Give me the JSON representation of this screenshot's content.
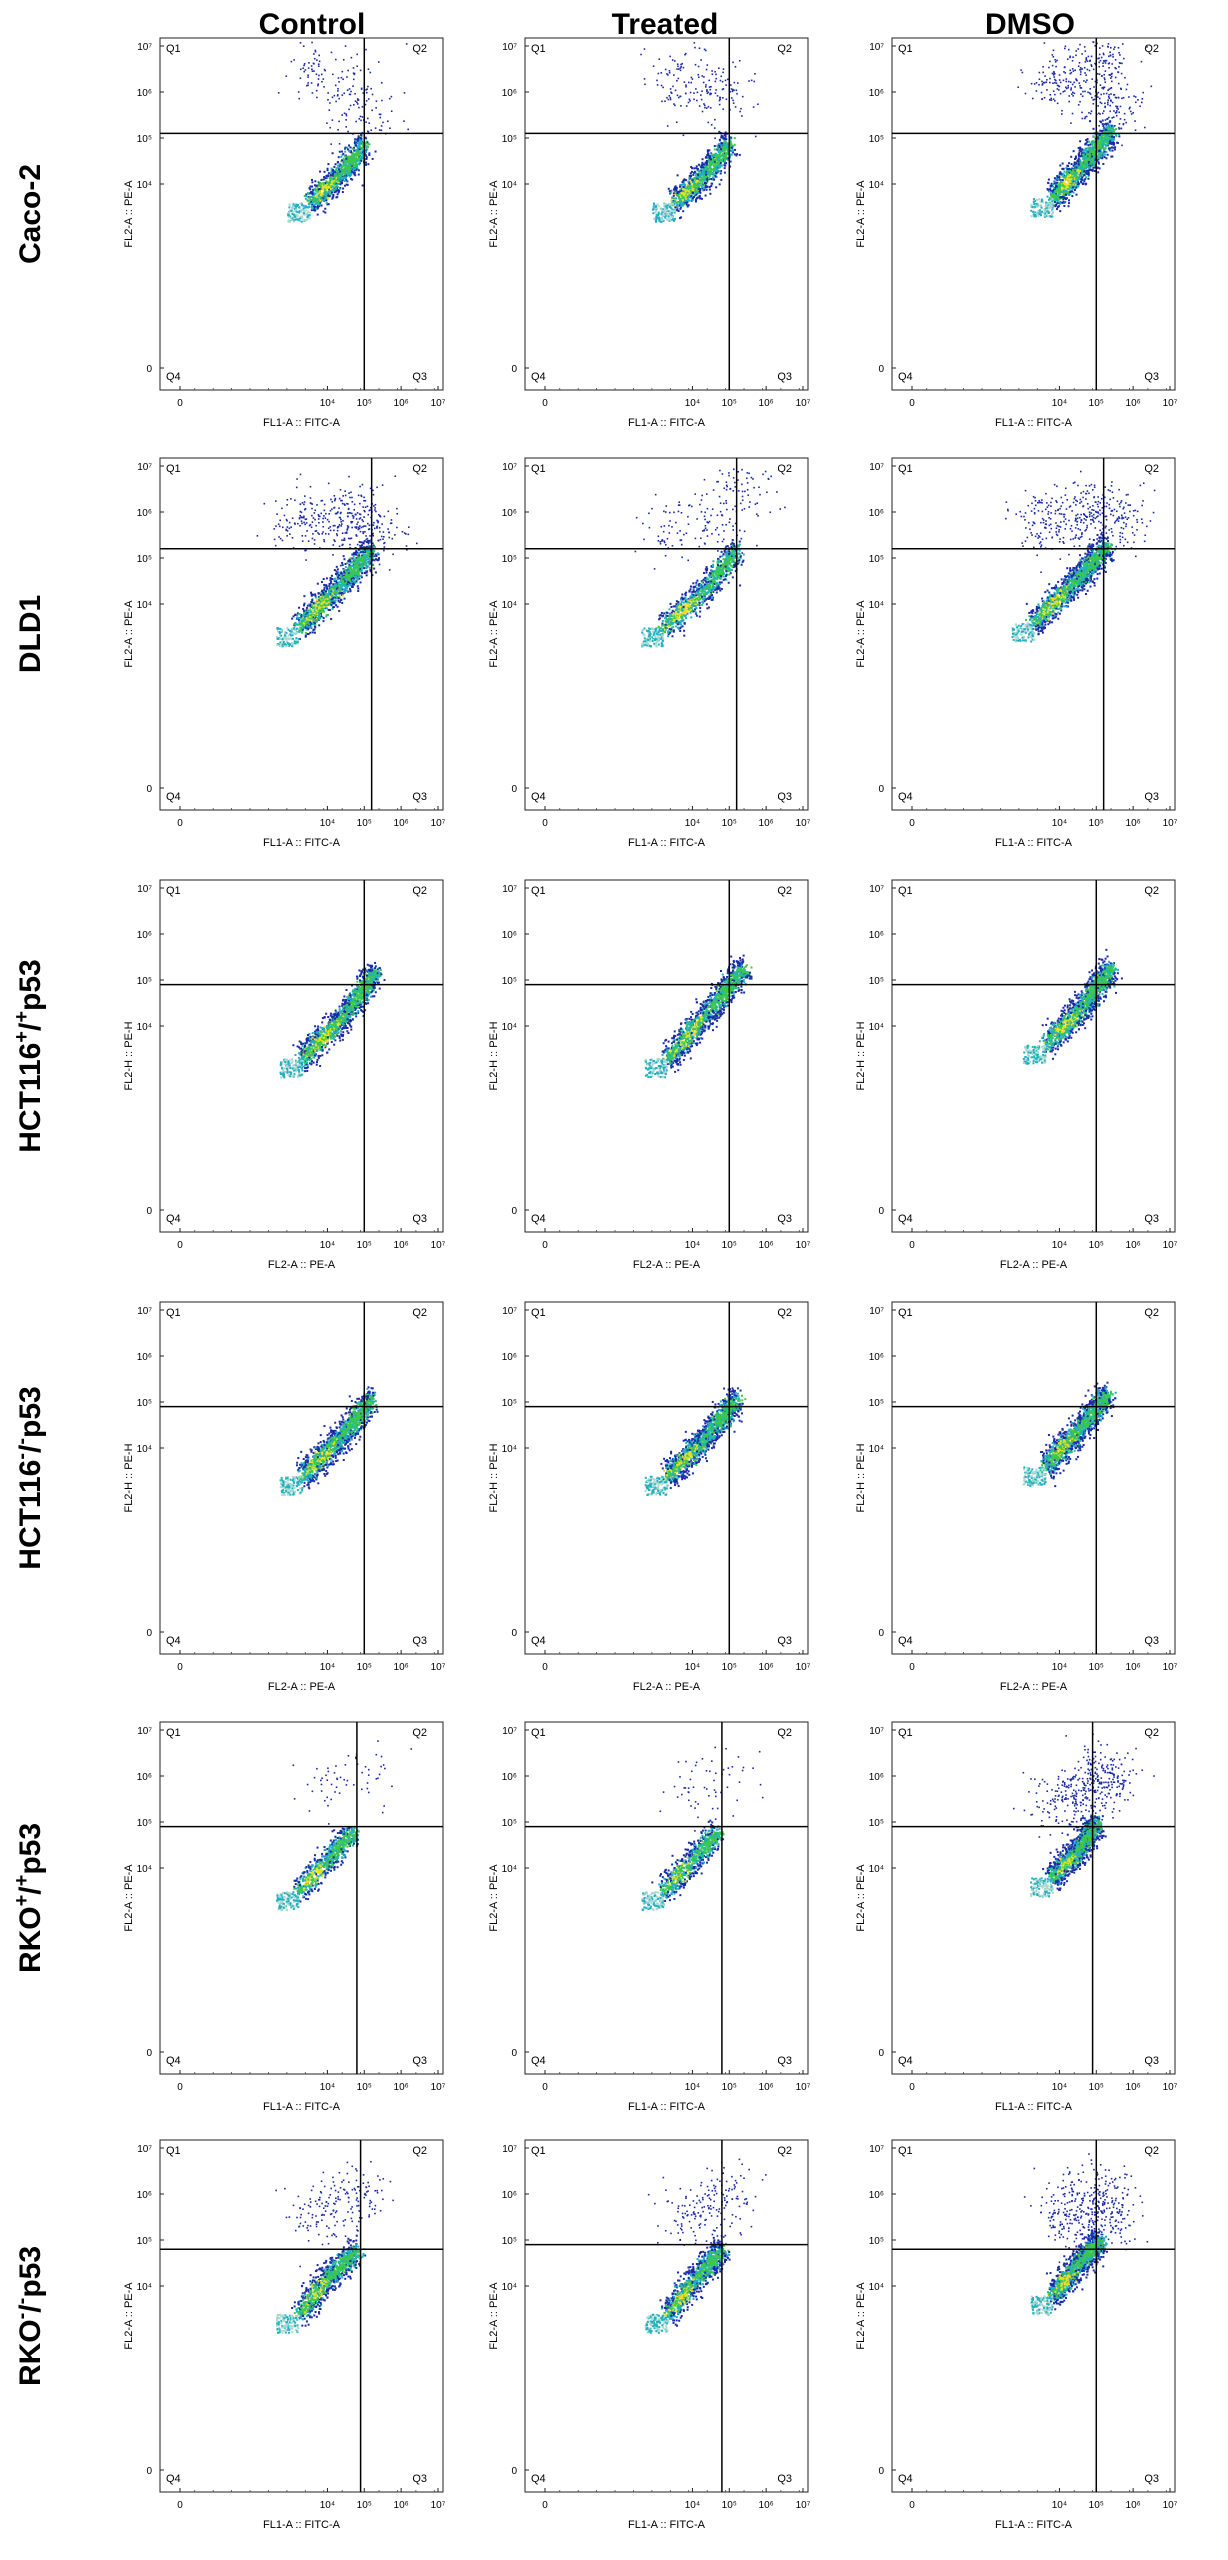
{
  "columns": [
    "Control",
    "Treated",
    "DMSO"
  ],
  "rows": [
    {
      "pre": "Caco-2",
      "sup": "",
      "mid": "",
      "sup2": "",
      "post": ""
    },
    {
      "pre": "DLD1",
      "sup": "",
      "mid": "",
      "sup2": "",
      "post": ""
    },
    {
      "pre": "HCT116",
      "sup": "+",
      "mid": "/",
      "sup2": "+",
      "post": "p53"
    },
    {
      "pre": "HCT116",
      "sup": "-",
      "mid": "/",
      "sup2": "-",
      "post": "p53"
    },
    {
      "pre": "RKO",
      "sup": "+",
      "mid": "/",
      "sup2": "+",
      "post": "p53"
    },
    {
      "pre": "RKO",
      "sup": "-",
      "mid": "/",
      "sup2": "-",
      "post": "p53"
    }
  ],
  "quadrant_labels": [
    "Q1",
    "Q2",
    "Q3",
    "Q4"
  ],
  "tick_labels": {
    "x": [
      "0",
      "10⁴",
      "10⁵",
      "10⁶",
      "10⁷"
    ],
    "y": [
      "0",
      "10⁴",
      "10⁵",
      "10⁶",
      "10⁷"
    ]
  },
  "colors": {
    "outer_dots": "#1a2aa8",
    "mid": "#20b0c0",
    "core": "#3cc84a",
    "hot": "#e8e020",
    "lines": "#000000"
  },
  "chart_data": [
    {
      "type": "scatter",
      "row": "Caco-2",
      "column": "Control",
      "xlabel": "FL1-A :: FITC-A",
      "ylabel": "FL2-A :: PE-A",
      "xlim": [
        0,
        7
      ],
      "ylim": [
        0,
        7
      ],
      "xgate": 5.0,
      "ygate": 5.1,
      "diag": [
        [
          3.5,
          3.6
        ],
        [
          4.3,
          4.2
        ],
        [
          5.0,
          4.9
        ]
      ],
      "spread": [
        [
          3.5,
          6.5
        ],
        [
          4.5,
          6.3
        ],
        [
          5.0,
          5.5
        ]
      ],
      "density": "medium"
    },
    {
      "type": "scatter",
      "row": "Caco-2",
      "column": "Treated",
      "xlabel": "FL1-A :: FITC-A",
      "ylabel": "FL2-A :: PE-A",
      "xlim": [
        0,
        7
      ],
      "ylim": [
        0,
        7
      ],
      "xgate": 5.0,
      "ygate": 5.1,
      "diag": [
        [
          3.5,
          3.6
        ],
        [
          4.3,
          4.2
        ],
        [
          5.0,
          4.9
        ]
      ],
      "spread": [
        [
          3.8,
          6.2
        ],
        [
          4.8,
          6.0
        ]
      ],
      "density": "medium"
    },
    {
      "type": "scatter",
      "row": "Caco-2",
      "column": "DMSO",
      "xlabel": "FL1-A :: FITC-A",
      "ylabel": "FL2-A :: PE-A",
      "xlim": [
        0,
        7
      ],
      "ylim": [
        0,
        7
      ],
      "xgate": 5.0,
      "ygate": 5.1,
      "diag": [
        [
          3.8,
          3.7
        ],
        [
          4.6,
          4.4
        ],
        [
          5.4,
          5.2
        ]
      ],
      "spread": [
        [
          4.0,
          6.3
        ],
        [
          5.0,
          6.7
        ],
        [
          5.4,
          5.7
        ]
      ],
      "density": "high"
    },
    {
      "type": "scatter",
      "row": "DLD1",
      "column": "Control",
      "xlabel": "FL1-A :: FITC-A",
      "ylabel": "FL2-A :: PE-A",
      "xlim": [
        0,
        7
      ],
      "ylim": [
        0,
        7
      ],
      "xgate": 5.2,
      "ygate": 5.2,
      "diag": [
        [
          3.2,
          3.5
        ],
        [
          4.3,
          4.4
        ],
        [
          5.2,
          5.2
        ]
      ],
      "spread": [
        [
          3.3,
          5.8
        ],
        [
          4.5,
          5.9
        ],
        [
          5.2,
          5.6
        ]
      ],
      "density": "high"
    },
    {
      "type": "scatter",
      "row": "DLD1",
      "column": "Treated",
      "xlabel": "FL1-A :: FITC-A",
      "ylabel": "FL2-A :: PE-A",
      "xlim": [
        0,
        7
      ],
      "ylim": [
        0,
        7
      ],
      "xgate": 5.2,
      "ygate": 5.2,
      "diag": [
        [
          3.2,
          3.5
        ],
        [
          4.3,
          4.3
        ],
        [
          5.2,
          5.2
        ]
      ],
      "spread": [
        [
          3.3,
          5.6
        ],
        [
          4.5,
          5.8
        ],
        [
          5.4,
          6.5
        ]
      ],
      "density": "medium"
    },
    {
      "type": "scatter",
      "row": "DLD1",
      "column": "DMSO",
      "xlabel": "FL1-A :: FITC-A",
      "ylabel": "FL2-A :: PE-A",
      "xlim": [
        0,
        7
      ],
      "ylim": [
        0,
        7
      ],
      "xgate": 5.2,
      "ygate": 5.2,
      "diag": [
        [
          3.3,
          3.6
        ],
        [
          4.4,
          4.5
        ],
        [
          5.3,
          5.3
        ]
      ],
      "spread": [
        [
          3.6,
          5.8
        ],
        [
          4.6,
          5.9
        ],
        [
          5.5,
          5.9
        ]
      ],
      "density": "high"
    },
    {
      "type": "scatter",
      "row": "HCT116+/+p53",
      "column": "Control",
      "xlabel": "FL2-A :: PE-A",
      "ylabel": "FL2-H :: PE-H",
      "xlim": [
        0,
        7
      ],
      "ylim": [
        0,
        7
      ],
      "xgate": 5.0,
      "ygate": 4.9,
      "diag": [
        [
          3.3,
          3.3
        ],
        [
          4.4,
          4.2
        ],
        [
          5.3,
          5.2
        ]
      ],
      "spread": [],
      "density": "high"
    },
    {
      "type": "scatter",
      "row": "HCT116+/+p53",
      "column": "Treated",
      "xlabel": "FL2-A :: PE-A",
      "ylabel": "FL2-H :: PE-H",
      "xlim": [
        0,
        7
      ],
      "ylim": [
        0,
        7
      ],
      "xgate": 5.0,
      "ygate": 4.9,
      "diag": [
        [
          3.3,
          3.3
        ],
        [
          4.4,
          4.3
        ],
        [
          5.4,
          5.3
        ]
      ],
      "spread": [],
      "density": "high"
    },
    {
      "type": "scatter",
      "row": "HCT116+/+p53",
      "column": "DMSO",
      "xlabel": "FL2-A :: PE-A",
      "ylabel": "FL2-H :: PE-H",
      "xlim": [
        0,
        7
      ],
      "ylim": [
        0,
        7
      ],
      "xgate": 5.0,
      "ygate": 4.9,
      "diag": [
        [
          3.6,
          3.6
        ],
        [
          4.6,
          4.4
        ],
        [
          5.4,
          5.3
        ]
      ],
      "spread": [],
      "density": "high"
    },
    {
      "type": "scatter",
      "row": "HCT116-/-p53",
      "column": "Control",
      "xlabel": "FL2-A :: PE-A",
      "ylabel": "FL2-H :: PE-H",
      "xlim": [
        0,
        7
      ],
      "ylim": [
        0,
        7
      ],
      "xgate": 5.0,
      "ygate": 4.9,
      "diag": [
        [
          3.3,
          3.4
        ],
        [
          4.3,
          4.2
        ],
        [
          5.2,
          5.1
        ]
      ],
      "spread": [],
      "density": "high"
    },
    {
      "type": "scatter",
      "row": "HCT116-/-p53",
      "column": "Treated",
      "xlabel": "FL2-A :: PE-A",
      "ylabel": "FL2-H :: PE-H",
      "xlim": [
        0,
        7
      ],
      "ylim": [
        0,
        7
      ],
      "xgate": 5.0,
      "ygate": 4.9,
      "diag": [
        [
          3.3,
          3.4
        ],
        [
          4.3,
          4.2
        ],
        [
          5.2,
          5.1
        ]
      ],
      "spread": [],
      "density": "high"
    },
    {
      "type": "scatter",
      "row": "HCT116-/-p53",
      "column": "DMSO",
      "xlabel": "FL2-A :: PE-A",
      "ylabel": "FL2-H :: PE-H",
      "xlim": [
        0,
        7
      ],
      "ylim": [
        0,
        7
      ],
      "xgate": 5.0,
      "ygate": 4.9,
      "diag": [
        [
          3.6,
          3.6
        ],
        [
          4.5,
          4.4
        ],
        [
          5.3,
          5.2
        ]
      ],
      "spread": [],
      "density": "high"
    },
    {
      "type": "scatter",
      "row": "RKO+/+p53",
      "column": "Control",
      "xlabel": "FL1-A :: FITC-A",
      "ylabel": "FL2-A :: PE-A",
      "xlim": [
        0,
        7
      ],
      "ylim": [
        0,
        7
      ],
      "xgate": 4.8,
      "ygate": 4.9,
      "diag": [
        [
          3.2,
          3.5
        ],
        [
          4.0,
          4.2
        ],
        [
          4.7,
          4.8
        ]
      ],
      "spread": [
        [
          4.0,
          5.8
        ],
        [
          5.0,
          6.0
        ]
      ],
      "density": "low"
    },
    {
      "type": "scatter",
      "row": "RKO+/+p53",
      "column": "Treated",
      "xlabel": "FL1-A :: FITC-A",
      "ylabel": "FL2-A :: PE-A",
      "xlim": [
        0,
        7
      ],
      "ylim": [
        0,
        7
      ],
      "xgate": 4.8,
      "ygate": 4.9,
      "diag": [
        [
          3.2,
          3.5
        ],
        [
          4.0,
          4.2
        ],
        [
          4.7,
          4.8
        ]
      ],
      "spread": [
        [
          4.0,
          5.6
        ],
        [
          5.0,
          6.0
        ]
      ],
      "density": "low"
    },
    {
      "type": "scatter",
      "row": "RKO+/+p53",
      "column": "DMSO",
      "xlabel": "FL1-A :: FITC-A",
      "ylabel": "FL2-A :: PE-A",
      "xlim": [
        0,
        7
      ],
      "ylim": [
        0,
        7
      ],
      "xgate": 4.9,
      "ygate": 4.9,
      "diag": [
        [
          3.8,
          3.8
        ],
        [
          4.5,
          4.4
        ],
        [
          5.0,
          5.0
        ]
      ],
      "spread": [
        [
          4.2,
          5.5
        ],
        [
          5.0,
          5.8
        ],
        [
          5.2,
          6.0
        ]
      ],
      "density": "high"
    },
    {
      "type": "scatter",
      "row": "RKO-/-p53",
      "column": "Control",
      "xlabel": "FL1-A :: FITC-A",
      "ylabel": "FL2-A :: PE-A",
      "xlim": [
        0,
        7
      ],
      "ylim": [
        0,
        7
      ],
      "xgate": 4.9,
      "ygate": 4.8,
      "diag": [
        [
          3.2,
          3.4
        ],
        [
          4.0,
          4.2
        ],
        [
          4.8,
          4.8
        ]
      ],
      "spread": [
        [
          3.8,
          5.6
        ],
        [
          4.8,
          6.0
        ]
      ],
      "density": "medium"
    },
    {
      "type": "scatter",
      "row": "RKO-/-p53",
      "column": "Treated",
      "xlabel": "FL1-A :: FITC-A",
      "ylabel": "FL2-A :: PE-A",
      "xlim": [
        0,
        7
      ],
      "ylim": [
        0,
        7
      ],
      "xgate": 4.8,
      "ygate": 4.9,
      "diag": [
        [
          3.3,
          3.4
        ],
        [
          4.1,
          4.2
        ],
        [
          4.8,
          4.8
        ]
      ],
      "spread": [
        [
          4.0,
          5.5
        ],
        [
          4.8,
          5.9
        ]
      ],
      "density": "medium"
    },
    {
      "type": "scatter",
      "row": "RKO-/-p53",
      "column": "DMSO",
      "xlabel": "FL1-A :: FITC-A",
      "ylabel": "FL2-A :: PE-A",
      "xlim": [
        0,
        7
      ],
      "ylim": [
        0,
        7
      ],
      "xgate": 5.0,
      "ygate": 4.8,
      "diag": [
        [
          3.8,
          3.8
        ],
        [
          4.5,
          4.5
        ],
        [
          5.1,
          5.0
        ]
      ],
      "spread": [
        [
          4.2,
          5.6
        ],
        [
          5.0,
          6.0
        ],
        [
          5.2,
          5.5
        ]
      ],
      "density": "high"
    }
  ]
}
